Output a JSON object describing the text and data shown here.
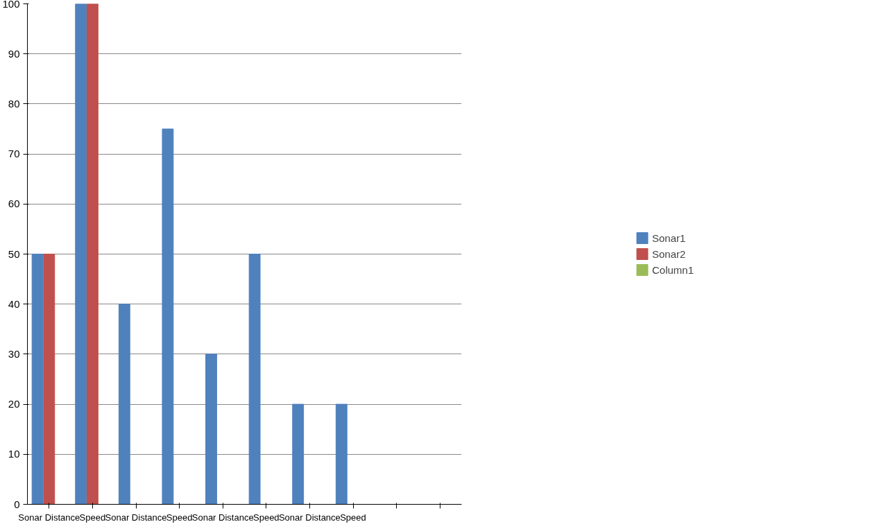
{
  "chart_data": {
    "type": "bar",
    "categories": [
      "Sonar Distance",
      "Speed",
      "Sonar Distance",
      "Speed",
      "Sonar Distance",
      "Speed",
      "Sonar Distance",
      "Speed",
      null,
      null
    ],
    "series": [
      {
        "name": "Sonar1",
        "color": "#4f81bd",
        "values": [
          50,
          100,
          40,
          75,
          30,
          50,
          20,
          20,
          null,
          null
        ]
      },
      {
        "name": "Sonar2",
        "color": "#c0504d",
        "values": [
          50,
          100,
          0,
          0,
          0,
          0,
          0,
          0,
          null,
          null
        ]
      },
      {
        "name": "Column1",
        "color": "#9bbb59",
        "values": [
          null,
          null,
          null,
          null,
          null,
          null,
          null,
          null,
          null,
          null
        ]
      }
    ],
    "ylim": [
      0,
      100
    ],
    "yticks": [
      0,
      10,
      20,
      30,
      40,
      50,
      60,
      70,
      80,
      90,
      100
    ],
    "grid": "y",
    "legend": "right"
  }
}
